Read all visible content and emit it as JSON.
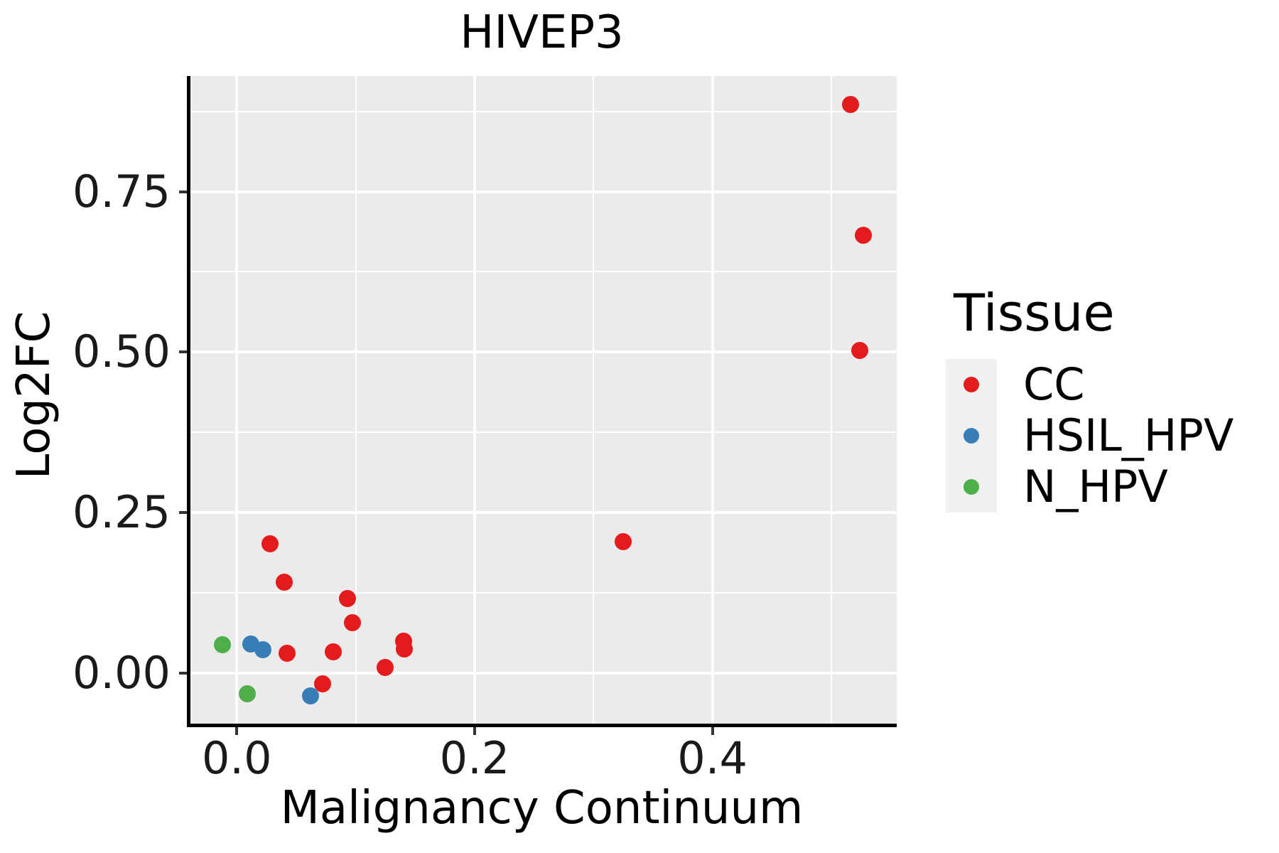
{
  "figure": {
    "title": "HIVEP3"
  },
  "axes": {
    "x_title": "Malignancy Continuum",
    "y_title": "Log2FC"
  },
  "legend": {
    "title": "Tissue",
    "items": [
      {
        "label": "CC",
        "color": "#E41A1C"
      },
      {
        "label": "HSIL_HPV",
        "color": "#377EB8"
      },
      {
        "label": "N_HPV",
        "color": "#4DAF4A"
      }
    ]
  },
  "chart_data": {
    "type": "scatter",
    "title": "HIVEP3",
    "xlabel": "Malignancy Continuum",
    "ylabel": "Log2FC",
    "xlim": [
      -0.039,
      0.555
    ],
    "ylim": [
      -0.079,
      0.93
    ],
    "x_major_ticks": [
      0.0,
      0.2,
      0.4
    ],
    "x_tick_labels": [
      "0.0",
      "0.2",
      "0.4"
    ],
    "x_minor_ticks": [
      0.1,
      0.3,
      0.5
    ],
    "y_major_ticks": [
      0.0,
      0.25,
      0.5,
      0.75
    ],
    "y_tick_labels": [
      "0.00",
      "0.25",
      "0.50",
      "0.75"
    ],
    "y_minor_ticks": [
      0.125,
      0.375,
      0.625,
      0.875
    ],
    "grid": true,
    "legend_position": "right",
    "point_radius_px": 12,
    "colors": {
      "panel_bg": "#EBEBEB",
      "grid": "#FFFFFF",
      "axis_line": "#000000",
      "tick_mark": "#333333",
      "legend_key_bg": "#F0F0F0",
      "text": "#000000"
    },
    "series": [
      {
        "name": "CC",
        "color": "#E41A1C",
        "points": [
          [
            0.516,
            0.886
          ],
          [
            0.527,
            0.682
          ],
          [
            0.524,
            0.503
          ],
          [
            0.325,
            0.204
          ],
          [
            0.028,
            0.201
          ],
          [
            0.04,
            0.141
          ],
          [
            0.093,
            0.116
          ],
          [
            0.097,
            0.078
          ],
          [
            0.042,
            0.031
          ],
          [
            0.081,
            0.033
          ],
          [
            0.14,
            0.049
          ],
          [
            0.141,
            0.037
          ],
          [
            0.125,
            0.008
          ],
          [
            0.072,
            -0.017
          ]
        ]
      },
      {
        "name": "HSIL_HPV",
        "color": "#377EB8",
        "points": [
          [
            0.012,
            0.045
          ],
          [
            0.022,
            0.036
          ],
          [
            0.062,
            -0.036
          ]
        ]
      },
      {
        "name": "N_HPV",
        "color": "#4DAF4A",
        "points": [
          [
            -0.012,
            0.044
          ],
          [
            0.009,
            -0.033
          ]
        ]
      }
    ]
  }
}
